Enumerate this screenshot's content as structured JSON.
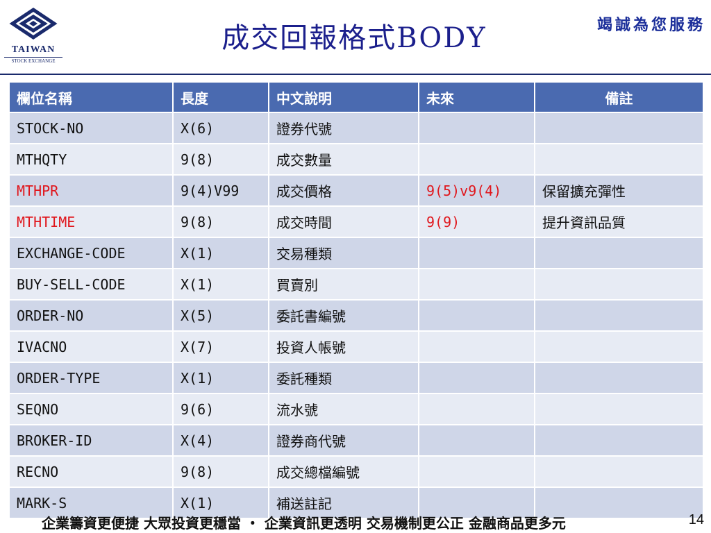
{
  "header": {
    "logo_text": "TAIWAN",
    "logo_sub": "STOCK EXCHANGE",
    "title": "成交回報格式BODY",
    "slogan": "竭誠為您服務"
  },
  "table": {
    "columns": [
      "欄位名稱",
      "長度",
      "中文說明",
      "未來",
      "備註"
    ],
    "rows": [
      {
        "name": "STOCK-NO",
        "length": "X(6)",
        "desc": "證券代號",
        "future": "",
        "note": "",
        "highlight": false
      },
      {
        "name": "MTHQTY",
        "length": "9(8)",
        "desc": "成交數量",
        "future": "",
        "note": "",
        "highlight": false
      },
      {
        "name": "MTHPR",
        "length": "9(4)V99",
        "desc": "成交價格",
        "future": "9(5)v9(4)",
        "note": "保留擴充彈性",
        "highlight": true
      },
      {
        "name": "MTHTIME",
        "length": "9(8)",
        "desc": "成交時間",
        "future": "9(9)",
        "note": "提升資訊品質",
        "highlight": true
      },
      {
        "name": "EXCHANGE-CODE",
        "length": "X(1)",
        "desc": "交易種類",
        "future": "",
        "note": "",
        "highlight": false
      },
      {
        "name": "BUY-SELL-CODE",
        "length": "X(1)",
        "desc": "買賣別",
        "future": "",
        "note": "",
        "highlight": false
      },
      {
        "name": "ORDER-NO",
        "length": "X(5)",
        "desc": "委託書編號",
        "future": "",
        "note": "",
        "highlight": false
      },
      {
        "name": "IVACNO",
        "length": "X(7)",
        "desc": "投資人帳號",
        "future": "",
        "note": "",
        "highlight": false
      },
      {
        "name": "ORDER-TYPE",
        "length": "X(1)",
        "desc": "委託種類",
        "future": "",
        "note": "",
        "highlight": false
      },
      {
        "name": "SEQNO",
        "length": "9(6)",
        "desc": "流水號",
        "future": "",
        "note": "",
        "highlight": false
      },
      {
        "name": "BROKER-ID",
        "length": "X(4)",
        "desc": "證券商代號",
        "future": "",
        "note": "",
        "highlight": false
      },
      {
        "name": "RECNO",
        "length": "9(8)",
        "desc": "成交總檔編號",
        "future": "",
        "note": "",
        "highlight": false
      },
      {
        "name": "MARK-S",
        "length": "X(1)",
        "desc": "補送註記",
        "future": "",
        "note": "",
        "highlight": false
      }
    ]
  },
  "footer": {
    "text": "企業籌資更便捷 大眾投資更穩當 ・ 企業資訊更透明 交易機制更公正 金融商品更多元",
    "page_number": "14"
  },
  "colors": {
    "header_fill": "#4a6ab0",
    "row_odd": "#cfd6e8",
    "row_even": "#e7ebf4",
    "highlight_text": "#e0161c",
    "title": "#1b1f8c"
  }
}
